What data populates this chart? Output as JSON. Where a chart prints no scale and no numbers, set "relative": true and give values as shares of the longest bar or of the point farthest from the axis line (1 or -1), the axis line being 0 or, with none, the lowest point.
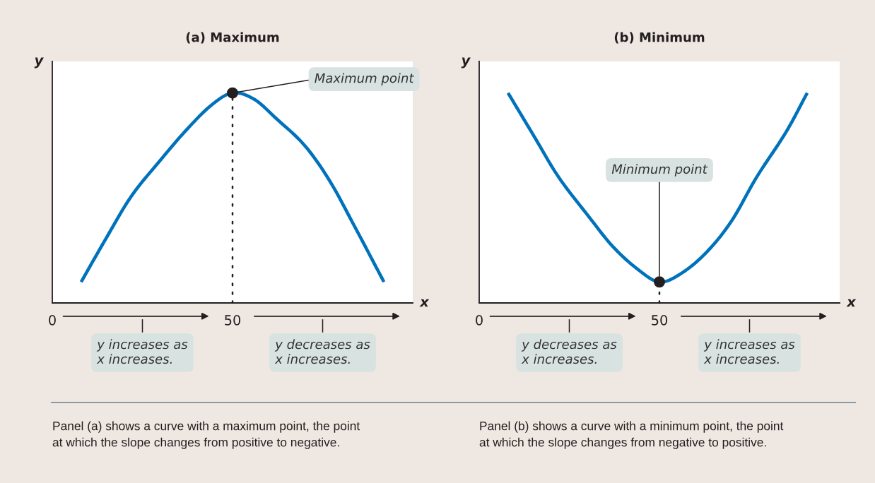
{
  "chart_data": [
    {
      "type": "line",
      "title": "(a) Maximum",
      "xlabel": "x",
      "ylabel": "y",
      "relative": true,
      "xlim": [
        0,
        100
      ],
      "xticks": [
        0,
        50
      ],
      "grid": false,
      "series": [
        {
          "color": "#0072bc",
          "x": [
            8,
            15,
            22,
            30,
            37,
            44,
            50,
            56,
            62,
            70,
            77,
            84,
            92
          ],
          "values": [
            0.1,
            0.31,
            0.51,
            0.68,
            0.82,
            0.94,
            1.0,
            0.97,
            0.88,
            0.75,
            0.58,
            0.36,
            0.1
          ]
        },
        {
          "type": "scatter",
          "color": "#231f20",
          "marker": "circle",
          "x": [
            50
          ],
          "values": [
            1.0
          ]
        }
      ],
      "ref_lines": [
        {
          "axis": "x",
          "value": 50,
          "line_style": "dotted",
          "color": "#231f20"
        }
      ],
      "annotations": [
        {
          "text": "Maximum point",
          "x": 50,
          "y": 1.0
        },
        "y increases as\nx increases.",
        "y decreases as\nx increases.",
        "Panel (a) shows a curve with a maximum point, the point\nat which the slope changes from positive to negative."
      ]
    },
    {
      "type": "line",
      "title": "(b) Minimum",
      "xlabel": "x",
      "ylabel": "y",
      "relative": true,
      "xlim": [
        0,
        100
      ],
      "xticks": [
        0,
        50
      ],
      "grid": false,
      "series": [
        {
          "color": "#0072bc",
          "x": [
            8,
            15,
            22,
            30,
            37,
            44,
            50,
            56,
            63,
            70,
            77,
            85,
            91
          ],
          "values": [
            1.0,
            0.8,
            0.6,
            0.42,
            0.27,
            0.16,
            0.1,
            0.14,
            0.24,
            0.39,
            0.6,
            0.81,
            1.0
          ]
        },
        {
          "type": "scatter",
          "color": "#231f20",
          "marker": "circle",
          "x": [
            50
          ],
          "values": [
            0.1
          ]
        }
      ],
      "ref_lines": [
        {
          "axis": "x",
          "value": 50,
          "line_style": "dotted",
          "color": "#231f20"
        }
      ],
      "annotations": [
        {
          "text": "Minimum point",
          "x": 50,
          "y": 0.1
        },
        "y decreases as\nx increases.",
        "y increases as\nx increases.",
        "Panel (b) shows a curve with a minimum point, the point\nat which the slope changes from negative to positive."
      ]
    }
  ]
}
